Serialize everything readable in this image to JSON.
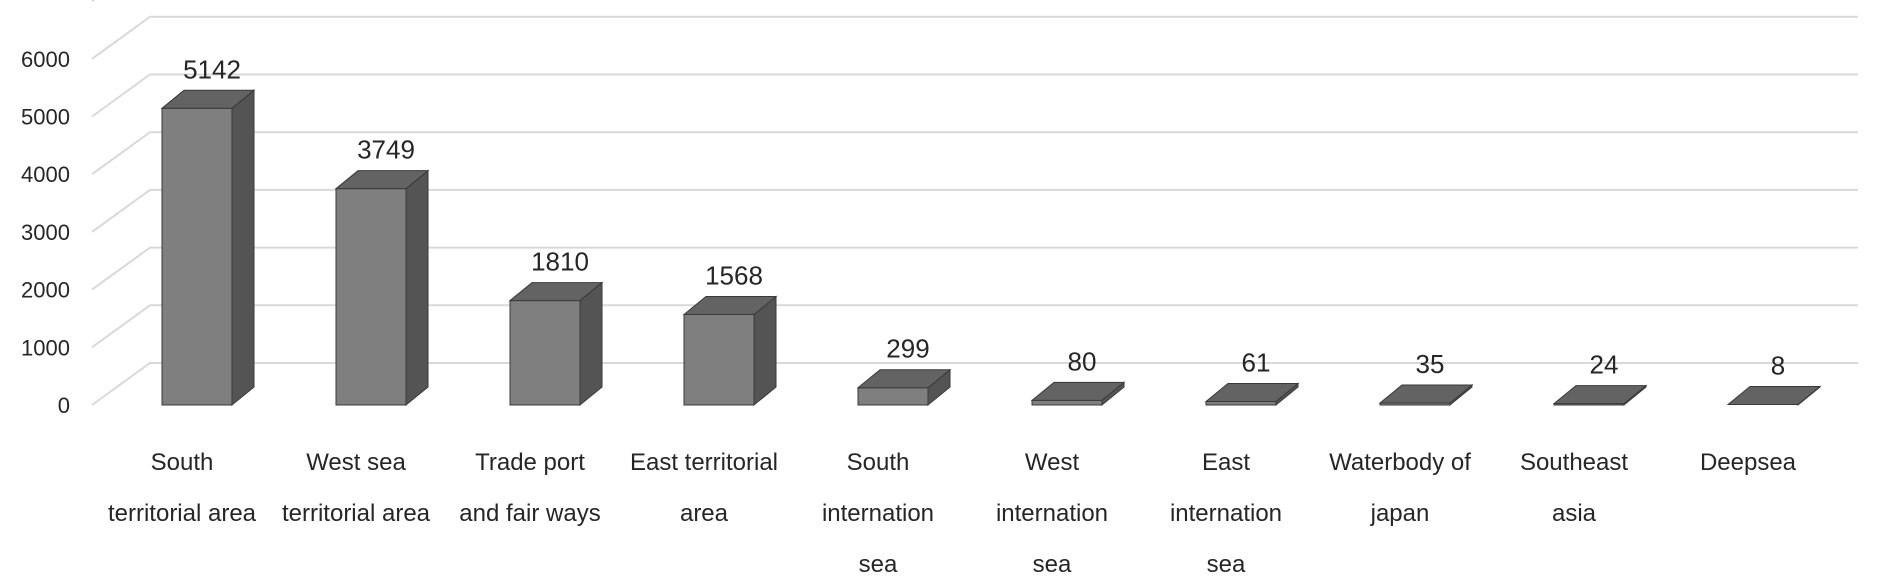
{
  "chart_data": {
    "type": "bar",
    "style": "3d-column",
    "categories": [
      [
        "South",
        "territorial area"
      ],
      [
        "West sea",
        "territorial area"
      ],
      [
        "Trade port",
        "and fair ways"
      ],
      [
        "East territorial",
        "area"
      ],
      [
        "South",
        "internation",
        "sea"
      ],
      [
        "West",
        "internation",
        "sea"
      ],
      [
        "East",
        "internation",
        "sea"
      ],
      [
        "Waterbody of",
        "japan"
      ],
      [
        "Southeast",
        "asia"
      ],
      [
        "Deepsea"
      ]
    ],
    "values": [
      5142,
      3749,
      1810,
      1568,
      299,
      80,
      61,
      35,
      24,
      8
    ],
    "ylim": [
      0,
      6000
    ],
    "yticks": [
      0,
      1000,
      2000,
      3000,
      4000,
      5000,
      6000
    ],
    "grid": true,
    "legend": "none",
    "colors": {
      "bar_front": "#7f7f7f",
      "bar_side": "#545454",
      "bar_top": "#636363",
      "grid": "#d9d9d9",
      "text": "#262626"
    }
  }
}
